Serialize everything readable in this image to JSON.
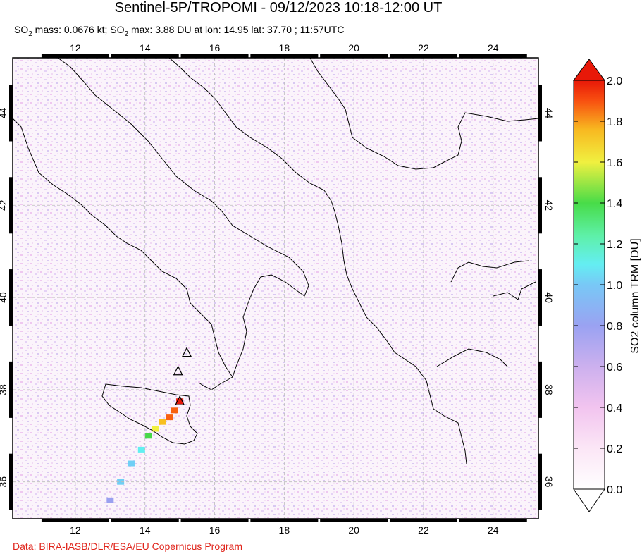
{
  "header": {
    "title": "Sentinel-5P/TROPOMI - 09/12/2023 10:18-12:00 UT",
    "subtitle_prefix": "SO",
    "subtitle_sub": "2",
    "subtitle_mid": " mass: 0.0676 kt; SO",
    "subtitle_sub2": "2",
    "subtitle_rest": " max: 3.88 DU at lon: 14.95 lat: 37.70 ; 11:57UTC"
  },
  "footer": {
    "credit": "Data: BIRA-IASB/DLR/ESA/EU Copernicus Program"
  },
  "chart_data": {
    "type": "heatmap",
    "title": "Sentinel-5P/TROPOMI - 09/12/2023 10:18-12:00 UT",
    "x_ticks": [
      "12",
      "14",
      "16",
      "18",
      "20",
      "22",
      "24"
    ],
    "y_ticks": [
      "36",
      "38",
      "40",
      "42",
      "44"
    ],
    "xlim": [
      10.2,
      25.3
    ],
    "ylim": [
      35.2,
      45.2
    ],
    "colorbar": {
      "label": "SO2 column TRM [DU]",
      "ticks": [
        "0.0",
        "0.2",
        "0.4",
        "0.6",
        "0.8",
        "1.0",
        "1.2",
        "1.4",
        "1.6",
        "1.8",
        "2.0"
      ],
      "range": [
        0.0,
        2.0
      ],
      "colors": [
        "#ffffff",
        "#f5c8f0",
        "#c8a8ee",
        "#9aa0f0",
        "#6fcff5",
        "#60f0f0",
        "#5ef090",
        "#48d848",
        "#f0f040",
        "#f8c020",
        "#f86010",
        "#e81808"
      ]
    },
    "plume": [
      {
        "lon": 15.0,
        "lat": 37.75,
        "value": 2.0
      },
      {
        "lon": 14.85,
        "lat": 37.55,
        "value": 1.9
      },
      {
        "lon": 14.7,
        "lat": 37.4,
        "value": 1.8
      },
      {
        "lon": 14.5,
        "lat": 37.3,
        "value": 1.6
      },
      {
        "lon": 14.3,
        "lat": 37.15,
        "value": 1.4
      },
      {
        "lon": 14.1,
        "lat": 37.0,
        "value": 1.2
      },
      {
        "lon": 13.9,
        "lat": 36.7,
        "value": 0.9
      },
      {
        "lon": 13.6,
        "lat": 36.4,
        "value": 0.75
      },
      {
        "lon": 13.3,
        "lat": 36.0,
        "value": 0.65
      },
      {
        "lon": 13.0,
        "lat": 35.6,
        "value": 0.55
      }
    ],
    "volcanoes": [
      {
        "lon": 15.0,
        "lat": 37.75
      },
      {
        "lon": 15.2,
        "lat": 38.8
      },
      {
        "lon": 14.95,
        "lat": 38.4
      }
    ]
  }
}
